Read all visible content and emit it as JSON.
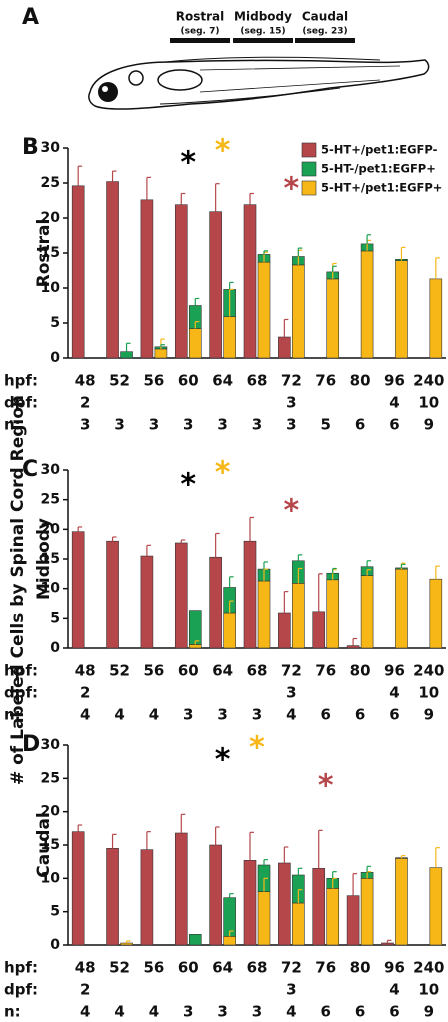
{
  "panel_a": {
    "label": "A",
    "regions": [
      {
        "name": "Rostral",
        "segment": "(seg. 7)"
      },
      {
        "name": "Midbody",
        "segment": "(seg. 15)"
      },
      {
        "name": "Caudal",
        "segment": "(seg. 23)"
      }
    ]
  },
  "y_title": "# of Labeled Cells by Spinal Cord Region",
  "row_labels": {
    "hpf": "hpf:",
    "dpf": "dpf:",
    "n": "n:"
  },
  "chart_data": [
    {
      "type": "bar",
      "label": "B",
      "ylabel": "Rostral",
      "legend": true,
      "categories": [
        "48",
        "52",
        "56",
        "60",
        "64",
        "68",
        "72",
        "76",
        "80",
        "96",
        "240"
      ],
      "dpf": [
        "2",
        null,
        null,
        null,
        null,
        null,
        "3",
        null,
        null,
        "4",
        "10"
      ],
      "n": [
        3,
        3,
        3,
        3,
        3,
        3,
        3,
        5,
        6,
        6,
        9
      ],
      "ylim": [
        0,
        30
      ],
      "yticks": [
        0,
        5,
        10,
        15,
        20,
        25,
        30
      ],
      "series": [
        {
          "name": "5-HT+/pet1:EGFP-",
          "color": "#b5474b",
          "values": [
            24.6,
            25.2,
            22.6,
            21.9,
            20.9,
            21.9,
            3.0,
            0,
            0,
            0,
            0
          ],
          "errors": [
            2.8,
            1.5,
            3.2,
            1.6,
            4.0,
            1.6,
            2.5,
            null,
            null,
            null,
            null
          ]
        },
        {
          "name": "5-HT-/pet1:EGFP+",
          "color": "#1aa153",
          "values": [
            0,
            0.9,
            0.3,
            3.3,
            3.9,
            1.1,
            1.2,
            1.0,
            1.0,
            0.2,
            0
          ],
          "errors": [
            null,
            1.2,
            0.3,
            1.0,
            1.0,
            0.5,
            1.2,
            0.8,
            1.3,
            null,
            null
          ]
        },
        {
          "name": "5-HT+/pet1:EGFP+",
          "color": "#f7b817",
          "values": [
            0,
            0,
            1.3,
            4.2,
            5.9,
            13.7,
            13.3,
            11.3,
            15.3,
            13.9,
            11.3
          ],
          "errors": [
            null,
            null,
            1.4,
            1.0,
            3.9,
            1.4,
            2.1,
            2.2,
            1.5,
            1.9,
            3.0
          ]
        }
      ],
      "annotations": [
        {
          "text": "*",
          "category": "60",
          "color": "#000000"
        },
        {
          "text": "*",
          "category": "64",
          "color": "#f7b817"
        },
        {
          "text": "*",
          "category": "72",
          "color": "#b5474b"
        }
      ]
    },
    {
      "type": "bar",
      "label": "C",
      "ylabel": "Midbody",
      "legend": false,
      "categories": [
        "48",
        "52",
        "56",
        "60",
        "64",
        "68",
        "72",
        "76",
        "80",
        "96",
        "240"
      ],
      "dpf": [
        "2",
        null,
        null,
        null,
        null,
        null,
        "3",
        null,
        null,
        "4",
        "10"
      ],
      "n": [
        4,
        4,
        4,
        3,
        3,
        3,
        4,
        6,
        6,
        6,
        9
      ],
      "ylim": [
        0,
        30
      ],
      "yticks": [
        0,
        5,
        10,
        15,
        20,
        25,
        30
      ],
      "series": [
        {
          "name": "5-HT+/pet1:EGFP-",
          "color": "#b5474b",
          "values": [
            19.6,
            18.0,
            15.5,
            17.7,
            15.3,
            18.0,
            5.9,
            6.1,
            0.4,
            0,
            0
          ],
          "errors": [
            0.8,
            0.7,
            1.8,
            0.5,
            4.0,
            4.0,
            3.6,
            6.4,
            1.2,
            null,
            null
          ]
        },
        {
          "name": "5-HT-/pet1:EGFP+",
          "color": "#1aa153",
          "values": [
            0,
            0,
            0,
            5.7,
            4.3,
            2.0,
            3.8,
            1.1,
            1.5,
            0.2,
            0
          ],
          "errors": [
            null,
            null,
            null,
            null,
            1.8,
            1.2,
            1.0,
            0.8,
            1.0,
            0.6,
            null
          ]
        },
        {
          "name": "5-HT+/pet1:EGFP+",
          "color": "#f7b817",
          "values": [
            0,
            0,
            0,
            0.6,
            5.9,
            11.3,
            10.9,
            11.5,
            12.2,
            13.3,
            11.6
          ],
          "errors": [
            null,
            null,
            null,
            0.6,
            2.0,
            2.0,
            2.5,
            1.7,
            1.0,
            1.0,
            2.2
          ]
        }
      ],
      "annotations": [
        {
          "text": "*",
          "category": "60",
          "color": "#000000"
        },
        {
          "text": "*",
          "category": "64",
          "color": "#f7b817"
        },
        {
          "text": "*",
          "category": "72",
          "color": "#b5474b"
        }
      ]
    },
    {
      "type": "bar",
      "label": "D",
      "ylabel": "Caudal",
      "legend": false,
      "categories": [
        "48",
        "52",
        "56",
        "60",
        "64",
        "68",
        "72",
        "76",
        "80",
        "96",
        "240"
      ],
      "dpf": [
        "2",
        null,
        null,
        null,
        null,
        null,
        "3",
        null,
        null,
        "4",
        "10"
      ],
      "n": [
        4,
        4,
        4,
        3,
        3,
        3,
        4,
        6,
        6,
        6,
        9
      ],
      "ylim": [
        0,
        30
      ],
      "yticks": [
        0,
        5,
        10,
        15,
        20,
        25,
        30
      ],
      "series": [
        {
          "name": "5-HT+/pet1:EGFP-",
          "color": "#b5474b",
          "values": [
            17.0,
            14.5,
            14.3,
            16.8,
            15.0,
            12.7,
            12.3,
            11.5,
            7.4,
            0.3,
            0
          ],
          "errors": [
            1.0,
            2.1,
            2.7,
            2.8,
            2.7,
            4.2,
            2.4,
            5.7,
            3.3,
            0.4,
            null
          ]
        },
        {
          "name": "5-HT-/pet1:EGFP+",
          "color": "#1aa153",
          "values": [
            0,
            0,
            0,
            1.6,
            5.8,
            4.0,
            4.2,
            1.5,
            0.9,
            0.1,
            0
          ],
          "errors": [
            null,
            null,
            null,
            null,
            0.6,
            0.8,
            1.0,
            1.0,
            0.9,
            null,
            null
          ]
        },
        {
          "name": "5-HT+/pet1:EGFP+",
          "color": "#f7b817",
          "values": [
            0,
            0.3,
            0,
            0,
            1.3,
            8.0,
            6.3,
            8.5,
            10.0,
            13.0,
            11.6
          ],
          "errors": [
            null,
            0.3,
            null,
            null,
            0.8,
            2.0,
            2.0,
            1.5,
            1.0,
            0.4,
            3.0
          ]
        }
      ],
      "annotations": [
        {
          "text": "*",
          "category": "64",
          "color": "#000000"
        },
        {
          "text": "*",
          "category": "68",
          "color": "#f7b817"
        },
        {
          "text": "*",
          "category": "76",
          "color": "#b5474b"
        }
      ]
    }
  ]
}
